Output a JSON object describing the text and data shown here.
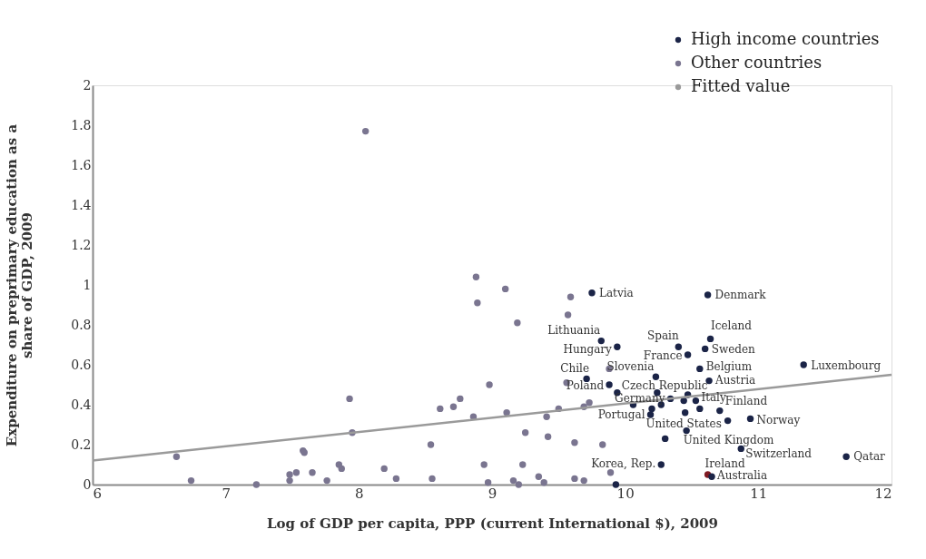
{
  "chart_data": {
    "type": "scatter",
    "xlabel": "Log of GDP per capita, PPP (current International $), 2009",
    "ylabel": "Expenditure on preprimary education as a share of GDP, 2009",
    "xlim": [
      6,
      12
    ],
    "xticks": [
      6,
      7,
      8,
      9,
      10,
      11,
      12
    ],
    "ylim": [
      0,
      2
    ],
    "yticks": [
      0,
      0.2,
      0.4,
      0.6,
      0.8,
      1,
      1.2,
      1.4,
      1.6,
      1.8,
      2
    ],
    "grid": false,
    "legend": "top right",
    "series": [
      {
        "name": "High income countries",
        "color": "#1b2447",
        "colors": [
          "#1b2447",
          "#1b2447",
          "#1b2447",
          "#1b2447",
          "#1b2447",
          "#1b2447",
          "#1b2447",
          "#1b2447",
          "#1b2447",
          "#1b2447",
          "#1b2447",
          "#1b2447",
          "#1b2447",
          "#1b2447",
          "#1b2447",
          "#1b2447",
          "#1b2447",
          "#1b2447",
          "#1b2447",
          "#1b2447",
          "#1b2447",
          "#1b2447",
          "#1b2447",
          "#1b2447",
          "#1b2447",
          "#1b2447",
          "#1b2447",
          "#1b2447",
          "#1b2447",
          "#1b2447",
          "#1b2447",
          "#1b2447",
          "#7f1a22",
          "#1b2447",
          "#1b2447",
          "#1b2447",
          "#1b2447"
        ],
        "x": [
          9.75,
          10.62,
          9.82,
          9.94,
          10.4,
          10.47,
          10.64,
          10.6,
          10.56,
          10.63,
          11.34,
          9.71,
          9.88,
          10.23,
          10.24,
          9.94,
          10.47,
          10.34,
          10.53,
          10.06,
          10.2,
          10.19,
          10.45,
          10.56,
          10.71,
          10.77,
          10.94,
          10.46,
          10.3,
          10.87,
          11.66,
          10.27,
          10.62,
          10.65,
          9.93,
          10.27,
          10.44
        ],
        "values": [
          0.96,
          0.95,
          0.72,
          0.69,
          0.69,
          0.65,
          0.73,
          0.68,
          0.58,
          0.52,
          0.6,
          0.53,
          0.5,
          0.54,
          0.46,
          0.46,
          0.45,
          0.43,
          0.42,
          0.4,
          0.38,
          0.35,
          0.36,
          0.38,
          0.37,
          0.32,
          0.33,
          0.27,
          0.23,
          0.18,
          0.14,
          0.1,
          0.05,
          0.04,
          0.0,
          0.4,
          0.42
        ]
      },
      {
        "name": "Other countries",
        "color": "#7a7590",
        "x": [
          8.05,
          6.63,
          6.74,
          7.23,
          7.48,
          7.48,
          7.53,
          7.58,
          7.59,
          7.65,
          7.76,
          7.85,
          7.87,
          7.93,
          7.95,
          8.19,
          8.28,
          8.54,
          8.55,
          8.61,
          8.71,
          8.76,
          8.86,
          8.88,
          8.89,
          8.94,
          8.97,
          8.98,
          9.1,
          9.59,
          9.57,
          9.19,
          9.11,
          9.41,
          9.5,
          9.56,
          9.69,
          9.73,
          9.88,
          9.25,
          9.42,
          9.62,
          9.83,
          9.23,
          9.16,
          9.2,
          9.35,
          9.39,
          9.62,
          9.69,
          9.89
        ],
        "values": [
          1.77,
          0.14,
          0.02,
          0.0,
          0.05,
          0.02,
          0.06,
          0.17,
          0.16,
          0.06,
          0.02,
          0.1,
          0.08,
          0.43,
          0.26,
          0.08,
          0.03,
          0.2,
          0.03,
          0.38,
          0.39,
          0.43,
          0.34,
          1.04,
          0.91,
          0.1,
          0.01,
          0.5,
          0.98,
          0.94,
          0.85,
          0.81,
          0.36,
          0.34,
          0.38,
          0.51,
          0.39,
          0.41,
          0.58,
          0.26,
          0.24,
          0.21,
          0.2,
          0.1,
          0.02,
          0.0,
          0.04,
          0.01,
          0.03,
          0.02,
          0.06
        ]
      },
      {
        "name": "Fitted value",
        "type": "line",
        "color": "#9a9a9a",
        "x": [
          6,
          12
        ],
        "values": [
          0.12,
          0.55
        ]
      }
    ],
    "annotations": [
      {
        "text": "Latvia",
        "x": 9.75,
        "y": 0.96
      },
      {
        "text": "Denmark",
        "x": 10.62,
        "y": 0.95
      },
      {
        "text": "Lithuania",
        "x": 9.82,
        "y": 0.72
      },
      {
        "text": "Hungary",
        "x": 9.94,
        "y": 0.69
      },
      {
        "text": "Spain",
        "x": 10.4,
        "y": 0.69
      },
      {
        "text": "France",
        "x": 10.47,
        "y": 0.65
      },
      {
        "text": "Iceland",
        "x": 10.64,
        "y": 0.73
      },
      {
        "text": "Sweden",
        "x": 10.6,
        "y": 0.68
      },
      {
        "text": "Belgium",
        "x": 10.56,
        "y": 0.58
      },
      {
        "text": "Austria",
        "x": 10.63,
        "y": 0.52
      },
      {
        "text": "Luxembourg",
        "x": 11.34,
        "y": 0.6
      },
      {
        "text": "Chile",
        "x": 9.71,
        "y": 0.53
      },
      {
        "text": "Slovenia",
        "x": 10.23,
        "y": 0.54
      },
      {
        "text": "Poland",
        "x": 9.88,
        "y": 0.5
      },
      {
        "text": "Czech Republic",
        "x": 9.94,
        "y": 0.46
      },
      {
        "text": "Germany",
        "x": 10.34,
        "y": 0.43
      },
      {
        "text": "Italy",
        "x": 10.53,
        "y": 0.42
      },
      {
        "text": "Finland",
        "x": 10.71,
        "y": 0.37
      },
      {
        "text": "Portugal",
        "x": 10.19,
        "y": 0.35
      },
      {
        "text": "United States",
        "x": 10.46,
        "y": 0.27
      },
      {
        "text": "Norway",
        "x": 10.94,
        "y": 0.33
      },
      {
        "text": "United Kingdom",
        "x": 10.3,
        "y": 0.23
      },
      {
        "text": "Switzerland",
        "x": 10.87,
        "y": 0.18
      },
      {
        "text": "Qatar",
        "x": 11.66,
        "y": 0.14
      },
      {
        "text": "Korea, Rep.",
        "x": 10.27,
        "y": 0.1
      },
      {
        "text": "Ireland",
        "x": 10.62,
        "y": 0.05
      },
      {
        "text": "Australia",
        "x": 10.65,
        "y": 0.04
      }
    ]
  }
}
